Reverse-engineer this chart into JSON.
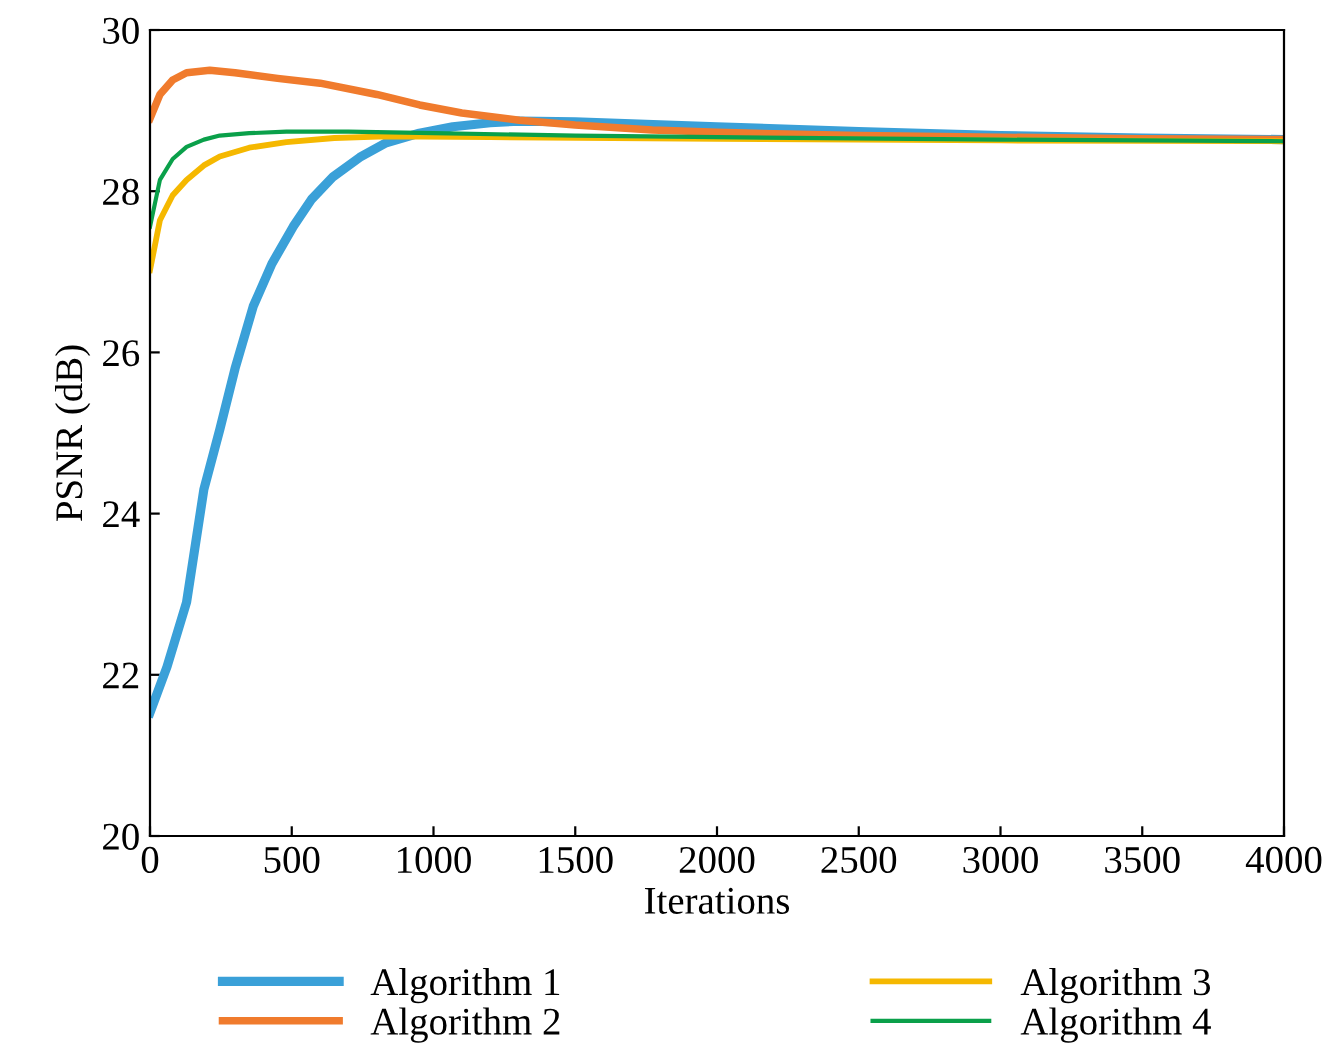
{
  "chart_data": {
    "type": "line",
    "xlabel": "Iterations",
    "ylabel": "PSNR (dB)",
    "xlim": [
      0,
      4000
    ],
    "xticks": [
      0,
      500,
      1000,
      1500,
      2000,
      2500,
      3000,
      3500,
      4000
    ],
    "ylim": [
      20,
      30
    ],
    "yticks": [
      20,
      22,
      24,
      26,
      28,
      30
    ],
    "grid": false,
    "legend": "bottom",
    "marker": "none",
    "line_style": "solid",
    "series": [
      {
        "name": "Algorithm 1",
        "color": "#3aa0d8",
        "x": [
          0,
          60,
          129,
          190,
          246,
          300,
          364,
          430,
          505,
          570,
          646,
          740,
          833,
          950,
          1068,
          1200,
          1303,
          1500,
          2000,
          2500,
          3000,
          3500,
          4000
        ],
        "values": [
          21.53,
          22.1,
          22.9,
          24.3,
          25.04,
          25.8,
          26.57,
          27.1,
          27.56,
          27.9,
          28.18,
          28.42,
          28.6,
          28.72,
          28.8,
          28.85,
          28.87,
          28.86,
          28.8,
          28.74,
          28.69,
          28.66,
          28.64
        ]
      },
      {
        "name": "Algorithm 2",
        "color": "#f07b2d",
        "x": [
          0,
          35,
          80,
          129,
          211,
          300,
          450,
          600,
          800,
          951,
          1100,
          1303,
          1500,
          1772,
          2000,
          2500,
          3000,
          3500,
          4000
        ],
        "values": [
          28.9,
          29.2,
          29.38,
          29.47,
          29.5,
          29.47,
          29.4,
          29.34,
          29.2,
          29.07,
          28.97,
          28.88,
          28.82,
          28.76,
          28.73,
          28.69,
          28.67,
          28.65,
          28.64
        ]
      },
      {
        "name": "Algorithm 3",
        "color": "#f5b800",
        "x": [
          0,
          35,
          80,
          129,
          190,
          246,
          350,
          481,
          650,
          833,
          1200,
          2000,
          3000,
          4000
        ],
        "values": [
          27.02,
          27.64,
          27.95,
          28.14,
          28.32,
          28.43,
          28.54,
          28.61,
          28.66,
          28.68,
          28.67,
          28.65,
          28.63,
          28.62
        ]
      },
      {
        "name": "Algorithm 4",
        "color": "#0aa04a",
        "x": [
          0,
          35,
          80,
          129,
          190,
          246,
          350,
          481,
          700,
          1000,
          1500,
          2000,
          3000,
          4000
        ],
        "values": [
          27.56,
          28.14,
          28.4,
          28.55,
          28.64,
          28.69,
          28.72,
          28.74,
          28.74,
          28.72,
          28.69,
          28.67,
          28.64,
          28.62
        ]
      }
    ]
  }
}
